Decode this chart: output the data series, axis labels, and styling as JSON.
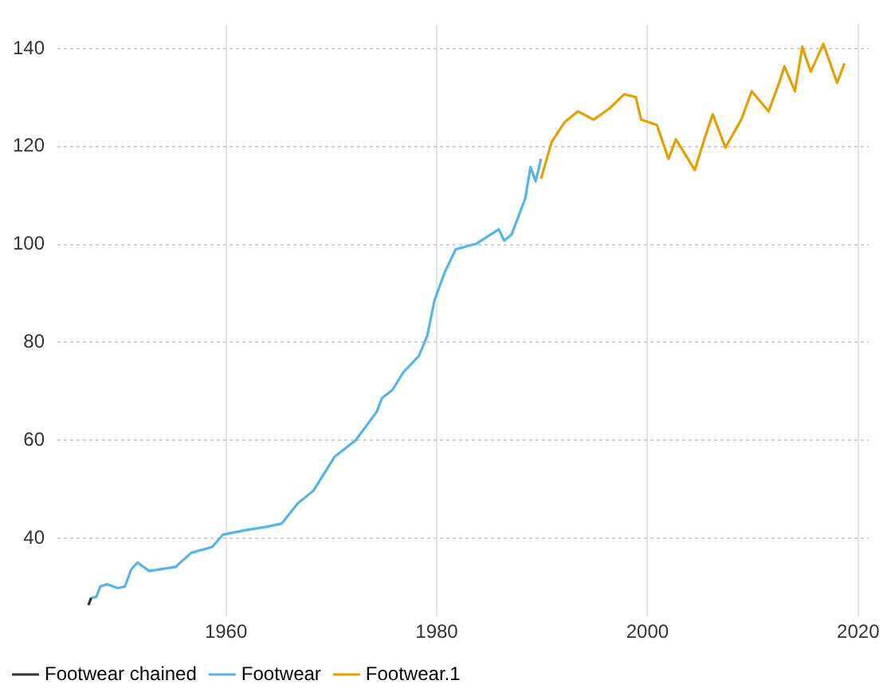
{
  "chart_data": {
    "type": "line",
    "xlim": [
      1944,
      2021
    ],
    "xticks": [
      1960,
      1980,
      2000,
      2020
    ],
    "ylim": [
      24,
      145
    ],
    "yticks": [
      40,
      60,
      80,
      100,
      120,
      140
    ],
    "grid": true,
    "legend": "bottom left",
    "marker": "none",
    "line_style": "solid",
    "series": [
      {
        "name": "Footwear chained",
        "color": "#333333",
        "x": [
          1946.95,
          1947.2
        ],
        "values": [
          26.3,
          27.8
        ]
      },
      {
        "name": "Footwear",
        "color": "#56b4e9",
        "x": [
          1947.2,
          1947.7,
          1948.06,
          1948.7,
          1949.7,
          1950.4,
          1951,
          1951.6,
          1952.7,
          1955.2,
          1956.7,
          1958.7,
          1959.7,
          1961.8,
          1963.8,
          1965.3,
          1966.8,
          1968.3,
          1970.3,
          1972.3,
          1974.3,
          1974.8,
          1975.8,
          1976.8,
          1978.3,
          1979.1,
          1979.8,
          1980.8,
          1981.8,
          1983.8,
          1985.9,
          1986.4,
          1987.1,
          1988.4,
          1988.9,
          1989.4,
          1989.9
        ],
        "values": [
          27.8,
          28,
          30.1,
          30.6,
          29.8,
          30.1,
          33.6,
          35,
          33.3,
          34.1,
          37,
          38.2,
          40.7,
          41.6,
          42.3,
          43,
          47.1,
          49.7,
          56.6,
          60,
          65.8,
          68.6,
          70.3,
          73.8,
          77.2,
          81.3,
          88.7,
          94.5,
          99,
          100.2,
          103.1,
          100.8,
          102,
          109.4,
          115.8,
          112.9,
          117.5
        ]
      },
      {
        "name": "Footwear.1",
        "color": "#e69f00",
        "x": [
          1989.9,
          1990.9,
          1992.1,
          1993.4,
          1994.9,
          1996.4,
          1997.8,
          1998.9,
          1999.4,
          2000.9,
          2002,
          2002.7,
          2004.5,
          2005.4,
          2006.2,
          2007.4,
          2008.9,
          2009.9,
          2011.5,
          2012.5,
          2013,
          2014,
          2014.7,
          2015.5,
          2016.7,
          2018,
          2018.7
        ],
        "values": [
          113.4,
          120.9,
          124.9,
          127.2,
          125.5,
          127.8,
          130.7,
          130.1,
          125.5,
          124.4,
          117.5,
          121.5,
          115.2,
          121.5,
          126.6,
          119.8,
          125.5,
          131.3,
          127.2,
          133,
          136.4,
          131.3,
          140.4,
          135.3,
          141,
          133,
          137
        ]
      }
    ]
  }
}
